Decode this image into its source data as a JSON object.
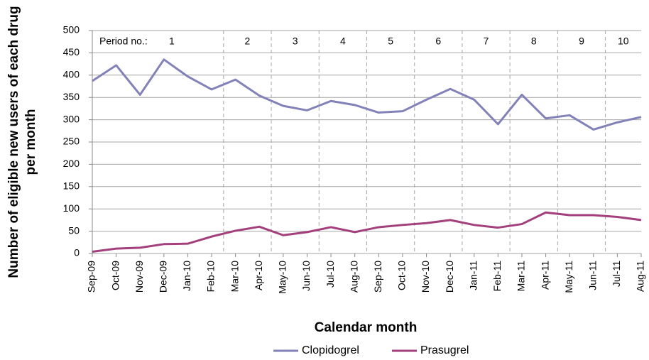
{
  "chart_data": {
    "type": "line",
    "ylabel": [
      "Number of eligible new users of each drug",
      "per month"
    ],
    "xlabel": "Calendar month",
    "categories": [
      "Sep-09",
      "Oct-09",
      "Nov-09",
      "Dec-09",
      "Jan-10",
      "Feb-10",
      "Mar-10",
      "Apr-10",
      "May-10",
      "Jun-10",
      "Jul-10",
      "Aug-10",
      "Sep-10",
      "Oct-10",
      "Nov-10",
      "Dec-10",
      "Jan-11",
      "Feb-11",
      "Mar-11",
      "Apr-11",
      "May-11",
      "Jun-11",
      "Jul-11",
      "Aug-11"
    ],
    "series": [
      {
        "name": "Clopidogrel",
        "color": "#8282b8",
        "values": [
          387,
          422,
          356,
          435,
          397,
          368,
          390,
          354,
          331,
          321,
          342,
          333,
          316,
          319,
          345,
          369,
          345,
          290,
          356,
          303,
          310,
          278,
          294,
          306
        ]
      },
      {
        "name": "Prasugrel",
        "color": "#a3407c",
        "values": [
          4,
          11,
          13,
          21,
          22,
          38,
          51,
          60,
          41,
          48,
          59,
          48,
          59,
          64,
          68,
          75,
          64,
          58,
          66,
          92,
          86,
          86,
          82,
          75
        ]
      }
    ],
    "ylim": [
      0,
      500
    ],
    "yticks": [
      0,
      50,
      100,
      150,
      200,
      250,
      300,
      350,
      400,
      450,
      500
    ],
    "grid": true,
    "period_title": "Period no.:",
    "periods": [
      {
        "label": "1",
        "start": "Sep-09"
      },
      {
        "label": "2",
        "start": "Mar-10"
      },
      {
        "label": "3",
        "start": "May-10"
      },
      {
        "label": "4",
        "start": "Jul-10"
      },
      {
        "label": "5",
        "start": "Sep-10"
      },
      {
        "label": "6",
        "start": "Nov-10"
      },
      {
        "label": "7",
        "start": "Jan-11"
      },
      {
        "label": "8",
        "start": "Mar-11"
      },
      {
        "label": "9",
        "start": "May-11"
      },
      {
        "label": "10",
        "start": "Jul-11"
      }
    ],
    "legend": "bottom"
  }
}
